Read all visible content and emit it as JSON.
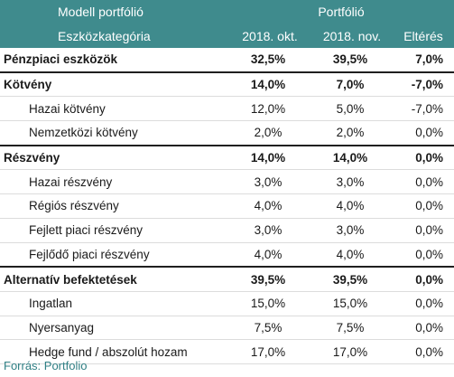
{
  "header": {
    "model_label": "Modell portfólió",
    "portfolio_label": "Portfólió",
    "category_label": "Eszközkategória",
    "col_oct": "2018. okt.",
    "col_nov": "2018. nov.",
    "col_diff": "Eltérés"
  },
  "rows": [
    {
      "name": "Pénzpiaci eszközök",
      "oct": "32,5%",
      "nov": "39,5%",
      "diff": "7,0%",
      "level": "category"
    },
    {
      "name": "Kötvény",
      "oct": "14,0%",
      "nov": "7,0%",
      "diff": "-7,0%",
      "level": "category"
    },
    {
      "name": "Hazai kötvény",
      "oct": "12,0%",
      "nov": "5,0%",
      "diff": "-7,0%",
      "level": "sub"
    },
    {
      "name": "Nemzetközi kötvény",
      "oct": "2,0%",
      "nov": "2,0%",
      "diff": "0,0%",
      "level": "sub"
    },
    {
      "name": "Részvény",
      "oct": "14,0%",
      "nov": "14,0%",
      "diff": "0,0%",
      "level": "category"
    },
    {
      "name": "Hazai részvény",
      "oct": "3,0%",
      "nov": "3,0%",
      "diff": "0,0%",
      "level": "sub"
    },
    {
      "name": "Régiós részvény",
      "oct": "4,0%",
      "nov": "4,0%",
      "diff": "0,0%",
      "level": "sub"
    },
    {
      "name": "Fejlett piaci részvény",
      "oct": "3,0%",
      "nov": "3,0%",
      "diff": "0,0%",
      "level": "sub"
    },
    {
      "name": "Fejlődő piaci részvény",
      "oct": "4,0%",
      "nov": "4,0%",
      "diff": "0,0%",
      "level": "sub"
    },
    {
      "name": "Alternatív befektetések",
      "oct": "39,5%",
      "nov": "39,5%",
      "diff": "0,0%",
      "level": "category"
    },
    {
      "name": "Ingatlan",
      "oct": "15,0%",
      "nov": "15,0%",
      "diff": "0,0%",
      "level": "sub"
    },
    {
      "name": "Nyersanyag",
      "oct": "7,5%",
      "nov": "7,5%",
      "diff": "0,0%",
      "level": "sub"
    },
    {
      "name": "Hedge fund / abszolút hozam",
      "oct": "17,0%",
      "nov": "17,0%",
      "diff": "0,0%",
      "level": "sub"
    }
  ],
  "source": "Forrás: Portfolio",
  "colors": {
    "header_bg": "#3f8b8d",
    "source_text": "#2f7f84"
  }
}
